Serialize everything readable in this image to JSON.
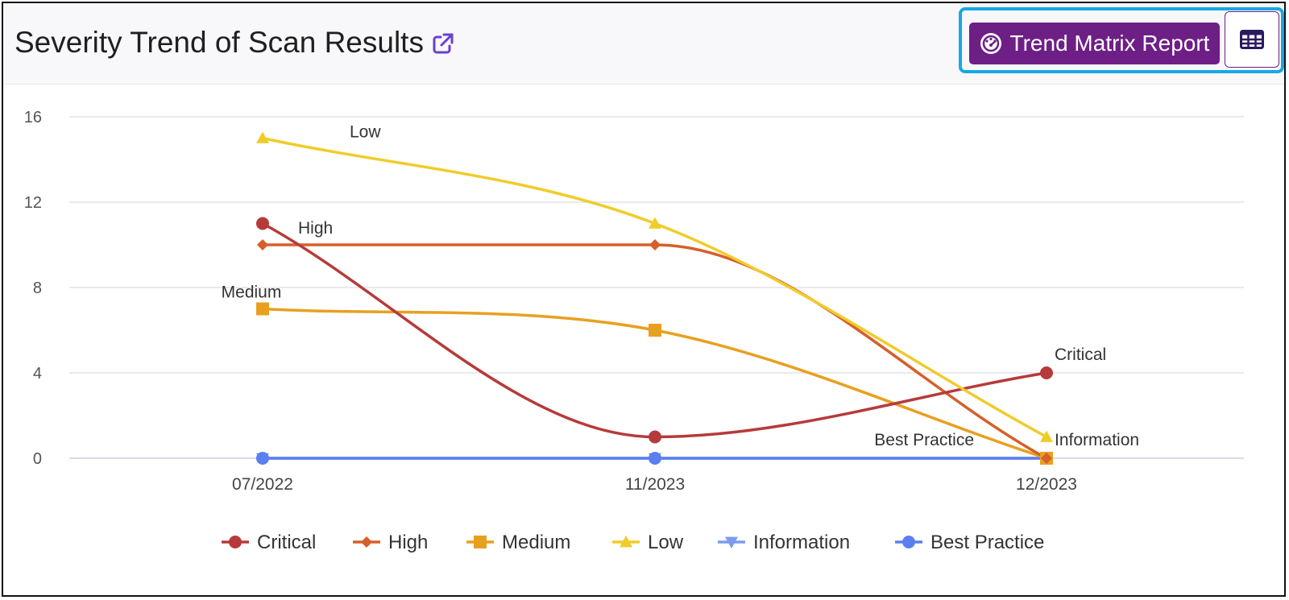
{
  "header": {
    "title": "Severity Trend of Scan Results",
    "external_link_icon": "external-link-icon",
    "trend_button_label": "Trend Matrix Report",
    "trend_button_icon": "dashboard-gauge-icon",
    "table_button_icon": "table-grid-icon",
    "accent_color": "#6e1f86",
    "highlight_color": "#17a8e3"
  },
  "chart_data": {
    "type": "line",
    "title": "",
    "xlabel": "",
    "ylabel": "",
    "categories": [
      "07/2022",
      "11/2023",
      "12/2023"
    ],
    "ylim": [
      0,
      16
    ],
    "yticks": [
      0,
      4,
      8,
      12,
      16
    ],
    "grid": true,
    "legend_position": "bottom",
    "series": [
      {
        "name": "Critical",
        "values": [
          11,
          1,
          4
        ],
        "color": "#b73a3a",
        "marker": "circle",
        "label": "Critical",
        "label_at": 2
      },
      {
        "name": "High",
        "values": [
          10,
          10,
          0
        ],
        "color": "#d65f2a",
        "marker": "diamond",
        "label": "High",
        "label_at": 0
      },
      {
        "name": "Medium",
        "values": [
          7,
          6,
          0
        ],
        "color": "#e8a020",
        "marker": "square",
        "label": "Medium",
        "label_at": 0
      },
      {
        "name": "Low",
        "values": [
          15,
          11,
          1
        ],
        "color": "#f0cc2a",
        "marker": "triangle",
        "label": "Low",
        "label_at": 0
      },
      {
        "name": "Information",
        "values": [
          0,
          0,
          0
        ],
        "color": "#7b9cf0",
        "marker": "triangle-down",
        "label": "Information",
        "label_at": 2
      },
      {
        "name": "Best Practice",
        "values": [
          0,
          0,
          0
        ],
        "color": "#5b7ff0",
        "marker": "circle",
        "label": "Best Practice",
        "label_at": 2
      }
    ]
  }
}
